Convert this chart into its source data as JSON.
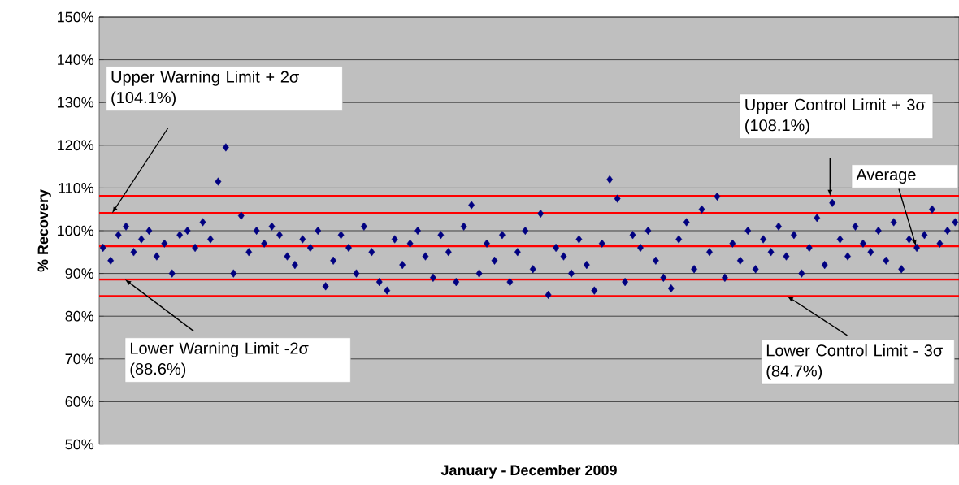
{
  "chart_data": {
    "type": "scatter",
    "xlabel": "January - December 2009",
    "ylabel": "% Recovery",
    "categories": [
      null,
      null,
      null,
      null,
      null,
      null,
      null,
      null,
      null,
      null,
      null,
      null,
      null,
      null,
      null,
      null,
      null,
      null,
      null,
      null,
      null,
      null,
      null,
      null,
      null,
      null,
      null,
      null,
      null,
      null,
      null,
      null,
      null,
      null,
      null,
      null,
      null,
      null,
      null,
      null,
      null,
      null,
      null,
      null,
      null,
      null,
      null,
      null,
      null,
      null,
      null,
      null,
      null,
      null,
      null,
      null,
      null,
      null,
      null,
      null,
      null,
      null,
      null,
      null,
      null,
      null,
      null,
      null,
      null,
      null,
      null,
      null,
      null,
      null,
      null,
      null,
      null,
      null,
      null,
      null,
      null,
      null,
      null,
      null,
      null,
      null,
      null,
      null,
      null,
      null,
      null,
      null,
      null,
      null,
      null,
      null,
      null,
      null,
      null,
      null,
      null,
      null,
      null,
      null,
      null,
      null,
      null,
      null,
      null,
      null,
      null,
      null
    ],
    "series": [
      {
        "color": "#000080",
        "values": [
          96,
          93,
          99,
          101,
          95,
          98,
          100,
          94,
          97,
          90,
          99,
          100,
          96,
          102,
          98,
          111.5,
          119.5,
          90,
          103.5,
          95,
          100,
          97,
          101,
          99,
          94,
          92,
          98,
          96,
          100,
          87,
          93,
          99,
          96,
          90,
          101,
          95,
          88,
          86,
          98,
          92,
          97,
          100,
          94,
          89,
          99,
          95,
          88,
          101,
          106,
          90,
          97,
          93,
          99,
          88,
          95,
          100,
          91,
          104,
          85,
          96,
          94,
          90,
          98,
          92,
          86,
          97,
          112,
          107.5,
          88,
          99,
          96,
          100,
          93,
          89,
          86.5,
          98,
          102,
          91,
          105,
          95,
          108,
          89,
          97,
          93,
          100,
          91,
          98,
          95,
          101,
          94,
          99,
          90,
          96,
          103,
          92,
          106.5,
          98,
          94,
          101,
          97,
          95,
          100,
          93,
          102,
          91,
          98,
          96,
          99,
          105,
          97,
          100,
          102
        ]
      }
    ],
    "marker": "diamond",
    "grid": "y",
    "ylim": [
      50,
      150
    ],
    "yticks": [
      {
        "value": 50,
        "label": "50%"
      },
      {
        "value": 60,
        "label": "60%"
      },
      {
        "value": 70,
        "label": "70%"
      },
      {
        "value": 80,
        "label": "80%"
      },
      {
        "value": 90,
        "label": "90%"
      },
      {
        "value": 100,
        "label": "100%"
      },
      {
        "value": 110,
        "label": "110%"
      },
      {
        "value": 120,
        "label": "120%"
      },
      {
        "value": 130,
        "label": "130%"
      },
      {
        "value": 140,
        "label": "140%"
      },
      {
        "value": 150,
        "label": "150%"
      }
    ],
    "ref_lines": [
      {
        "axis": "y",
        "value": 108.1,
        "color": "#ff0000"
      },
      {
        "axis": "y",
        "value": 104.1,
        "color": "#ff0000"
      },
      {
        "axis": "y",
        "value": 96.4,
        "color": "#ff0000"
      },
      {
        "axis": "y",
        "value": 88.6,
        "color": "#ff0000"
      },
      {
        "axis": "y",
        "value": 84.7,
        "color": "#ff0000"
      }
    ],
    "annotations": [
      "Upper Control Limit + 3σ (108.1%)",
      "Upper Warning Limit + 2σ (104.1%)",
      "Average",
      "Lower Warning Limit -2σ (88.6%)",
      "Lower Control Limit - 3σ (84.7%)"
    ]
  }
}
